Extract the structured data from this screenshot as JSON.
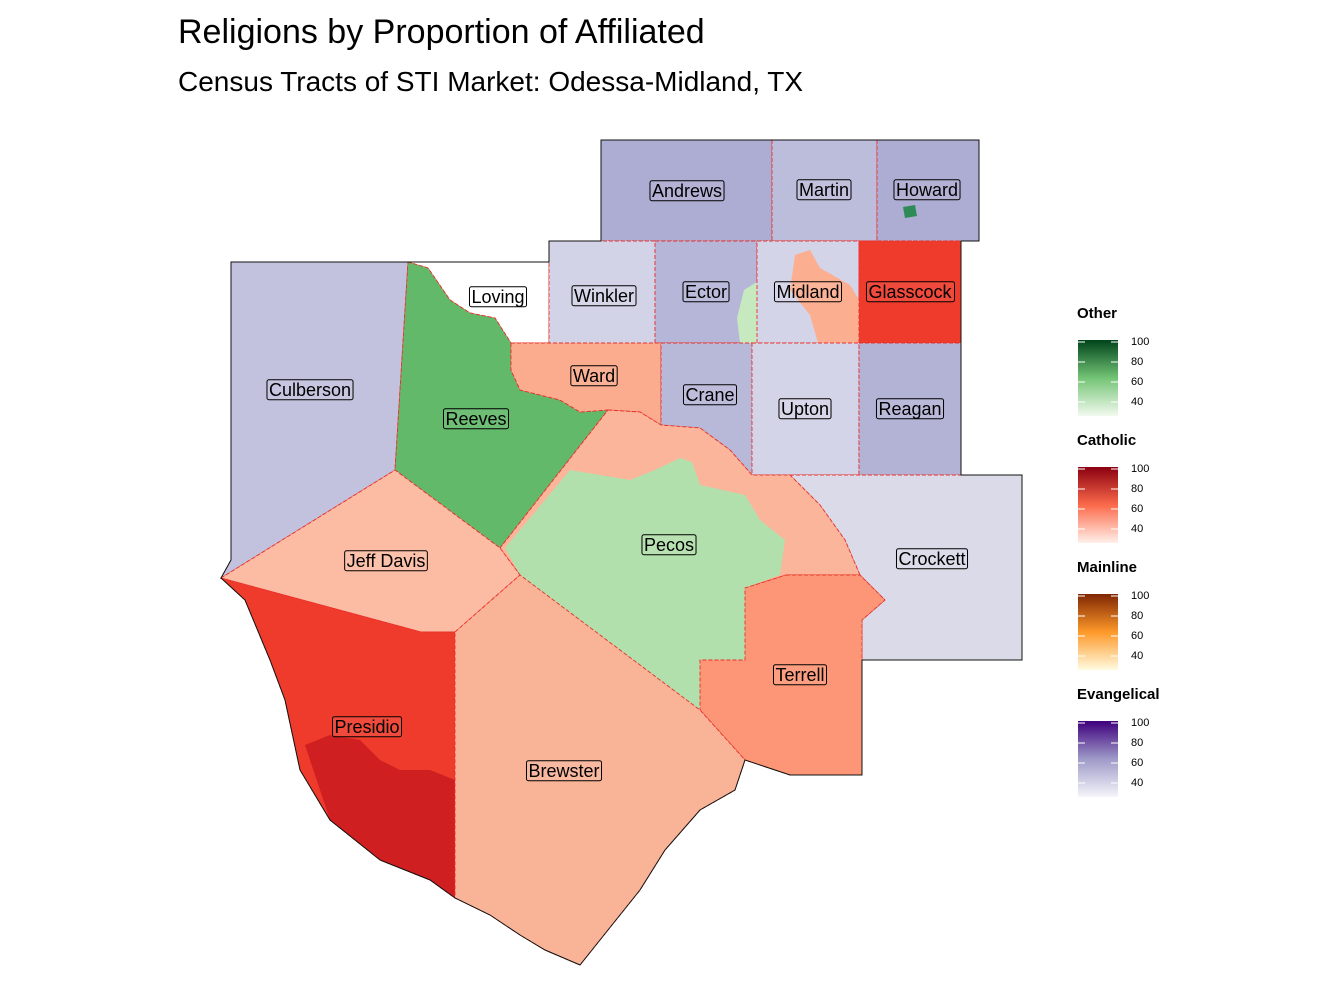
{
  "title": "Religions by Proportion of Affiliated",
  "subtitle": "Census Tracts of STI Market: Odessa-Midland, TX",
  "counties": [
    {
      "name": "Andrews",
      "color": "#adacd2"
    },
    {
      "name": "Martin",
      "color": "#bcbcdb"
    },
    {
      "name": "Howard",
      "color": "#adacd2",
      "tract_color": "#2e8b57"
    },
    {
      "name": "Loving",
      "color": "#ffffff"
    },
    {
      "name": "Winkler",
      "color": "#d3d3e8"
    },
    {
      "name": "Ector",
      "color": "#b6b6d8",
      "tract_color": "#c7e9c0"
    },
    {
      "name": "Midland",
      "color": "#d4d4e8",
      "tract_color": "#fcae91"
    },
    {
      "name": "Glasscock",
      "color": "#ef3b2c"
    },
    {
      "name": "Culberson",
      "color": "#c2c2de"
    },
    {
      "name": "Reeves",
      "color": "#63b96a"
    },
    {
      "name": "Ward",
      "color": "#fbab8e"
    },
    {
      "name": "Crane",
      "color": "#b8b8d8"
    },
    {
      "name": "Upton",
      "color": "#d4d4e8"
    },
    {
      "name": "Reagan",
      "color": "#b3b3d6"
    },
    {
      "name": "Crockett",
      "color": "#dadae9"
    },
    {
      "name": "Pecos",
      "color": "#fbb59b",
      "tract_color": "#b2e0ac"
    },
    {
      "name": "Terrell",
      "color": "#fc9676"
    },
    {
      "name": "Jeff Davis",
      "color": "#fcbca3"
    },
    {
      "name": "Presidio",
      "color": "#ef3b2c",
      "tract_color": "#d01f20"
    },
    {
      "name": "Brewster",
      "color": "#f9b498"
    }
  ],
  "legends": [
    {
      "title": "Other",
      "colors": [
        "#f2faef",
        "#74c476",
        "#00441b"
      ],
      "lim": [
        26,
        102
      ],
      "ticks": [
        40,
        60,
        80,
        100
      ]
    },
    {
      "title": "Catholic",
      "colors": [
        "#fff0ea",
        "#fb6a4a",
        "#8b0010"
      ],
      "lim": [
        26,
        102
      ],
      "ticks": [
        40,
        60,
        80,
        100
      ]
    },
    {
      "title": "Mainline",
      "colors": [
        "#fffbe0",
        "#fe9929",
        "#7f2704"
      ],
      "lim": [
        26,
        102
      ],
      "ticks": [
        40,
        60,
        80,
        100
      ]
    },
    {
      "title": "Evangelical",
      "colors": [
        "#f5f5fa",
        "#9e9ac8",
        "#3f007d"
      ],
      "lim": [
        26,
        102
      ],
      "ticks": [
        40,
        60,
        80,
        100
      ]
    }
  ]
}
